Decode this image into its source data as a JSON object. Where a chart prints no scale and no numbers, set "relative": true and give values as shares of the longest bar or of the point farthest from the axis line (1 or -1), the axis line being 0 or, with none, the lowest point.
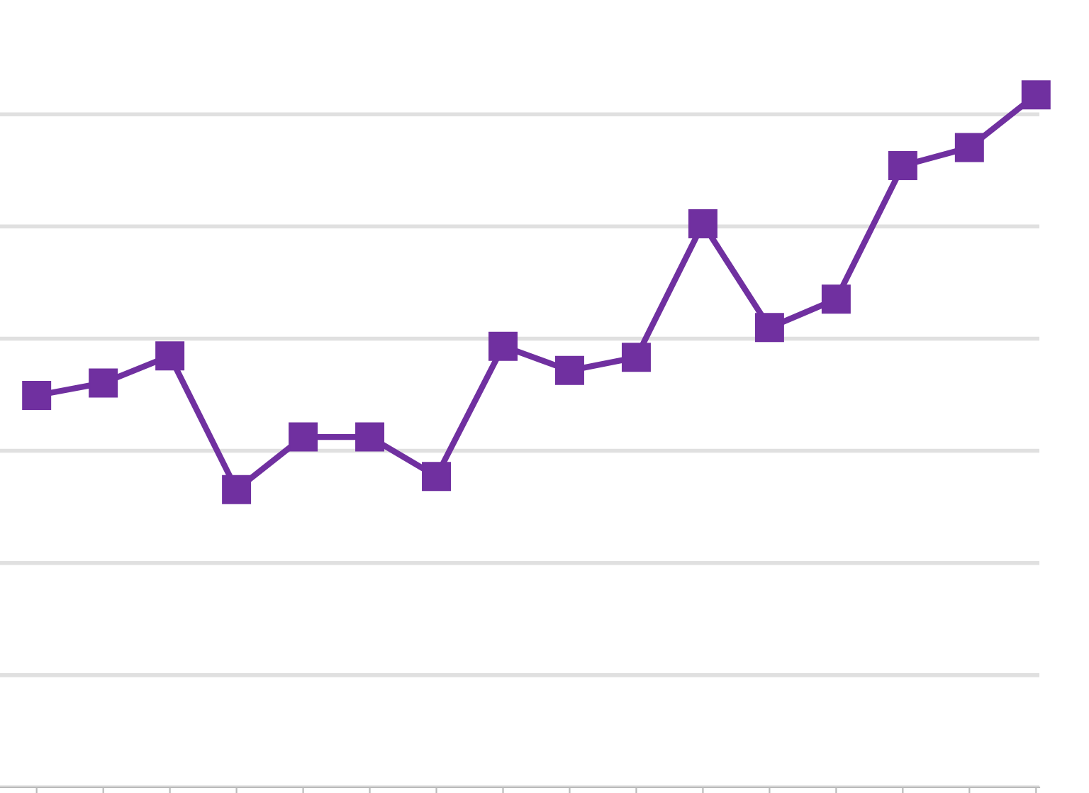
{
  "chart_data": {
    "type": "line",
    "relative": true,
    "categories": [
      null,
      null,
      null,
      null,
      null,
      null,
      null,
      null,
      null,
      null,
      null,
      null,
      null,
      null,
      null,
      null
    ],
    "series": [
      {
        "color": "#7030a0",
        "values": [
          0.566,
          0.584,
          0.623,
          0.43,
          0.506,
          0.506,
          0.449,
          0.637,
          0.602,
          0.621,
          0.814,
          0.664,
          0.705,
          0.898,
          0.924,
          1.0
        ]
      }
    ],
    "marker": "square",
    "line_style": "solid",
    "grid": "y"
  }
}
